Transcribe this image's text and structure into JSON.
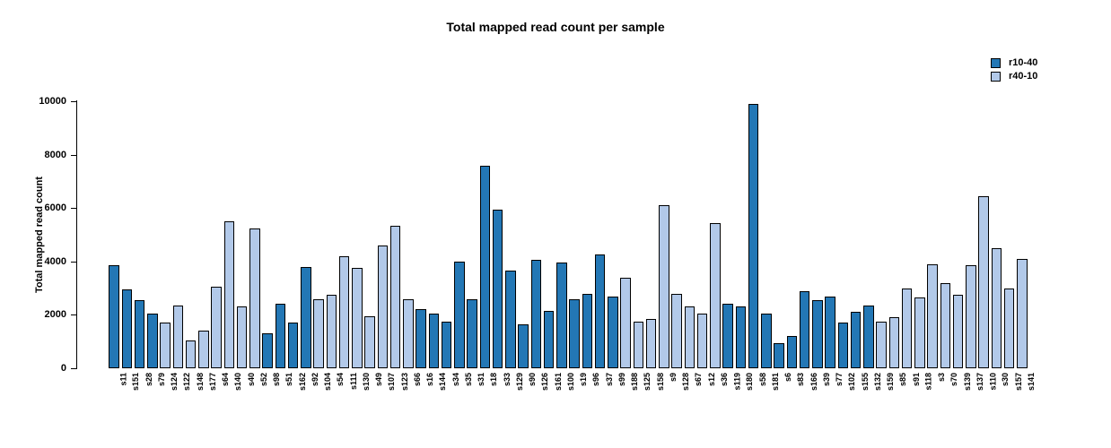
{
  "chart_data": {
    "type": "bar",
    "title": "Total mapped read count per sample",
    "xlabel": "",
    "ylabel": "Total mapped read count",
    "ylim": [
      0,
      10000
    ],
    "yticks": [
      0,
      2000,
      4000,
      6000,
      8000,
      10000
    ],
    "grid": false,
    "legend_position": "top-right",
    "legend": [
      {
        "label": "r10-40",
        "color": "#2377b5"
      },
      {
        "label": "r40-10",
        "color": "#b2c9e9"
      }
    ],
    "bar_border_color": "#000000",
    "categories": [
      "s11",
      "s151",
      "s28",
      "s79",
      "s124",
      "s122",
      "s148",
      "s177",
      "s64",
      "s140",
      "s40",
      "s52",
      "s98",
      "s51",
      "s162",
      "s92",
      "s104",
      "s54",
      "s111",
      "s130",
      "s49",
      "s107",
      "s123",
      "s66",
      "s16",
      "s144",
      "s34",
      "s35",
      "s31",
      "s18",
      "s33",
      "s129",
      "s90",
      "s126",
      "s161",
      "s100",
      "s19",
      "s96",
      "s37",
      "s99",
      "s188",
      "s125",
      "s158",
      "s9",
      "s128",
      "s67",
      "s12",
      "s36",
      "s119",
      "s180",
      "s58",
      "s181",
      "s6",
      "s83",
      "s166",
      "s39",
      "s77",
      "s102",
      "s155",
      "s132",
      "s159",
      "s85",
      "s91",
      "s118",
      "s3",
      "s70",
      "s139",
      "s137",
      "s110",
      "s30",
      "s157",
      "s141"
    ],
    "samples": [
      {
        "name": "s11",
        "value": 3850,
        "group": "r10-40"
      },
      {
        "name": "s151",
        "value": 2950,
        "group": "r10-40"
      },
      {
        "name": "s28",
        "value": 2550,
        "group": "r10-40"
      },
      {
        "name": "s79",
        "value": 2050,
        "group": "r10-40"
      },
      {
        "name": "s124",
        "value": 1700,
        "group": "r40-10"
      },
      {
        "name": "s122",
        "value": 2350,
        "group": "r40-10"
      },
      {
        "name": "s148",
        "value": 1050,
        "group": "r40-10"
      },
      {
        "name": "s177",
        "value": 1400,
        "group": "r40-10"
      },
      {
        "name": "s64",
        "value": 3050,
        "group": "r40-10"
      },
      {
        "name": "s140",
        "value": 5500,
        "group": "r40-10"
      },
      {
        "name": "s40",
        "value": 2300,
        "group": "r40-10"
      },
      {
        "name": "s52",
        "value": 5250,
        "group": "r40-10"
      },
      {
        "name": "s98",
        "value": 1300,
        "group": "r10-40"
      },
      {
        "name": "s51",
        "value": 2400,
        "group": "r10-40"
      },
      {
        "name": "s162",
        "value": 1700,
        "group": "r10-40"
      },
      {
        "name": "s92",
        "value": 3800,
        "group": "r10-40"
      },
      {
        "name": "s104",
        "value": 2600,
        "group": "r40-10"
      },
      {
        "name": "s54",
        "value": 2750,
        "group": "r40-10"
      },
      {
        "name": "s111",
        "value": 4200,
        "group": "r40-10"
      },
      {
        "name": "s130",
        "value": 3750,
        "group": "r40-10"
      },
      {
        "name": "s49",
        "value": 1950,
        "group": "r40-10"
      },
      {
        "name": "s107",
        "value": 4600,
        "group": "r40-10"
      },
      {
        "name": "s123",
        "value": 5350,
        "group": "r40-10"
      },
      {
        "name": "s66",
        "value": 2600,
        "group": "r40-10"
      },
      {
        "name": "s16",
        "value": 2200,
        "group": "r10-40"
      },
      {
        "name": "s144",
        "value": 2050,
        "group": "r10-40"
      },
      {
        "name": "s34",
        "value": 1750,
        "group": "r10-40"
      },
      {
        "name": "s35",
        "value": 4000,
        "group": "r10-40"
      },
      {
        "name": "s31",
        "value": 2600,
        "group": "r10-40"
      },
      {
        "name": "s18",
        "value": 7600,
        "group": "r10-40"
      },
      {
        "name": "s33",
        "value": 5950,
        "group": "r10-40"
      },
      {
        "name": "s129",
        "value": 3650,
        "group": "r10-40"
      },
      {
        "name": "s90",
        "value": 1650,
        "group": "r10-40"
      },
      {
        "name": "s126",
        "value": 4050,
        "group": "r10-40"
      },
      {
        "name": "s161",
        "value": 2150,
        "group": "r10-40"
      },
      {
        "name": "s100",
        "value": 3950,
        "group": "r10-40"
      },
      {
        "name": "s19",
        "value": 2600,
        "group": "r10-40"
      },
      {
        "name": "s96",
        "value": 2800,
        "group": "r10-40"
      },
      {
        "name": "s37",
        "value": 4250,
        "group": "r10-40"
      },
      {
        "name": "s99",
        "value": 2700,
        "group": "r10-40"
      },
      {
        "name": "s188",
        "value": 3400,
        "group": "r40-10"
      },
      {
        "name": "s125",
        "value": 1750,
        "group": "r40-10"
      },
      {
        "name": "s158",
        "value": 1850,
        "group": "r40-10"
      },
      {
        "name": "s9",
        "value": 6100,
        "group": "r40-10"
      },
      {
        "name": "s128",
        "value": 2800,
        "group": "r40-10"
      },
      {
        "name": "s67",
        "value": 2300,
        "group": "r40-10"
      },
      {
        "name": "s12",
        "value": 2050,
        "group": "r40-10"
      },
      {
        "name": "s36",
        "value": 5450,
        "group": "r40-10"
      },
      {
        "name": "s119",
        "value": 2400,
        "group": "r10-40"
      },
      {
        "name": "s180",
        "value": 2300,
        "group": "r10-40"
      },
      {
        "name": "s58",
        "value": 9900,
        "group": "r10-40"
      },
      {
        "name": "s181",
        "value": 2050,
        "group": "r10-40"
      },
      {
        "name": "s6",
        "value": 950,
        "group": "r10-40"
      },
      {
        "name": "s83",
        "value": 1200,
        "group": "r10-40"
      },
      {
        "name": "s166",
        "value": 2900,
        "group": "r10-40"
      },
      {
        "name": "s39",
        "value": 2550,
        "group": "r10-40"
      },
      {
        "name": "s77",
        "value": 2700,
        "group": "r10-40"
      },
      {
        "name": "s102",
        "value": 1700,
        "group": "r10-40"
      },
      {
        "name": "s155",
        "value": 2100,
        "group": "r10-40"
      },
      {
        "name": "s132",
        "value": 2350,
        "group": "r10-40"
      },
      {
        "name": "s159",
        "value": 1750,
        "group": "r40-10"
      },
      {
        "name": "s85",
        "value": 1900,
        "group": "r40-10"
      },
      {
        "name": "s91",
        "value": 3000,
        "group": "r40-10"
      },
      {
        "name": "s118",
        "value": 2650,
        "group": "r40-10"
      },
      {
        "name": "s3",
        "value": 3900,
        "group": "r40-10"
      },
      {
        "name": "s70",
        "value": 3200,
        "group": "r40-10"
      },
      {
        "name": "s139",
        "value": 2750,
        "group": "r40-10"
      },
      {
        "name": "s137",
        "value": 3850,
        "group": "r40-10"
      },
      {
        "name": "s110",
        "value": 6450,
        "group": "r40-10"
      },
      {
        "name": "s30",
        "value": 4500,
        "group": "r40-10"
      },
      {
        "name": "s157",
        "value": 3000,
        "group": "r40-10"
      },
      {
        "name": "s141",
        "value": 4100,
        "group": "r40-10"
      }
    ]
  }
}
